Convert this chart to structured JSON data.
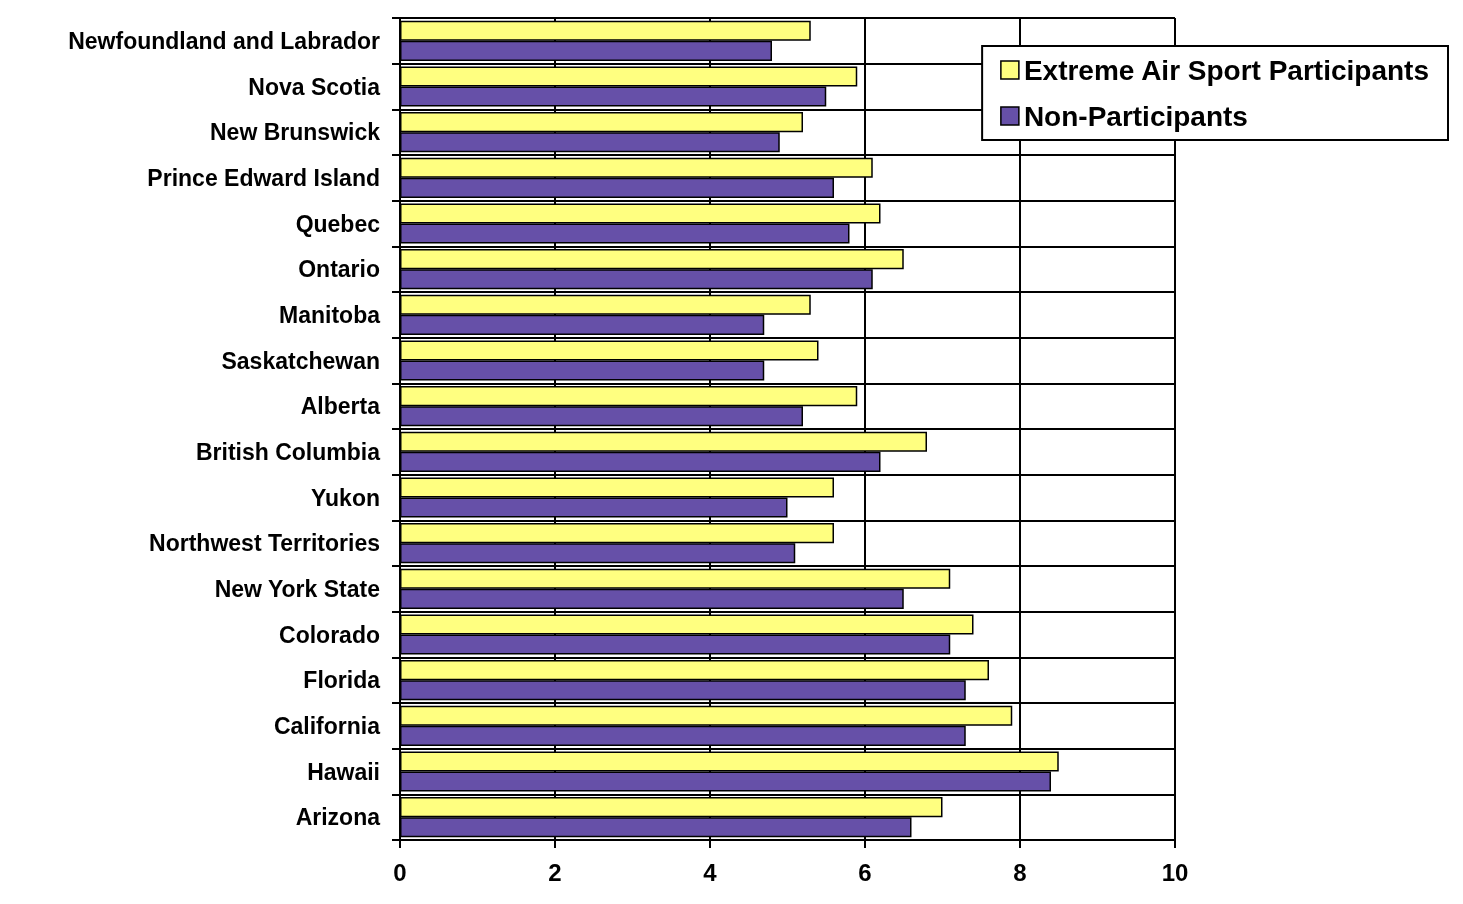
{
  "chart_data": {
    "type": "bar",
    "orientation": "horizontal",
    "categories": [
      "Newfoundland and Labrador",
      "Nova Scotia",
      "New Brunswick",
      "Prince Edward Island",
      "Quebec",
      "Ontario",
      "Manitoba",
      "Saskatchewan",
      "Alberta",
      "British Columbia",
      "Yukon",
      "Northwest Territories",
      "New York State",
      "Colorado",
      "Florida",
      "California",
      "Hawaii",
      "Arizona"
    ],
    "series": [
      {
        "name": "Extreme Air Sport Participants",
        "color": "#ffff80",
        "values": [
          5.3,
          5.9,
          5.2,
          6.1,
          6.2,
          6.5,
          5.3,
          5.4,
          5.9,
          6.8,
          5.6,
          5.6,
          7.1,
          7.4,
          7.6,
          7.9,
          8.5,
          7.0
        ]
      },
      {
        "name": "Non-Participants",
        "color": "#6650a8",
        "values": [
          4.8,
          5.5,
          4.9,
          5.6,
          5.8,
          6.1,
          4.7,
          4.7,
          5.2,
          6.2,
          5.0,
          5.1,
          6.5,
          7.1,
          7.3,
          7.3,
          8.4,
          6.6
        ]
      }
    ],
    "xlim": [
      0,
      10
    ],
    "xticks": [
      0,
      2,
      4,
      6,
      8,
      10
    ],
    "grid": true,
    "legend": "top right"
  }
}
